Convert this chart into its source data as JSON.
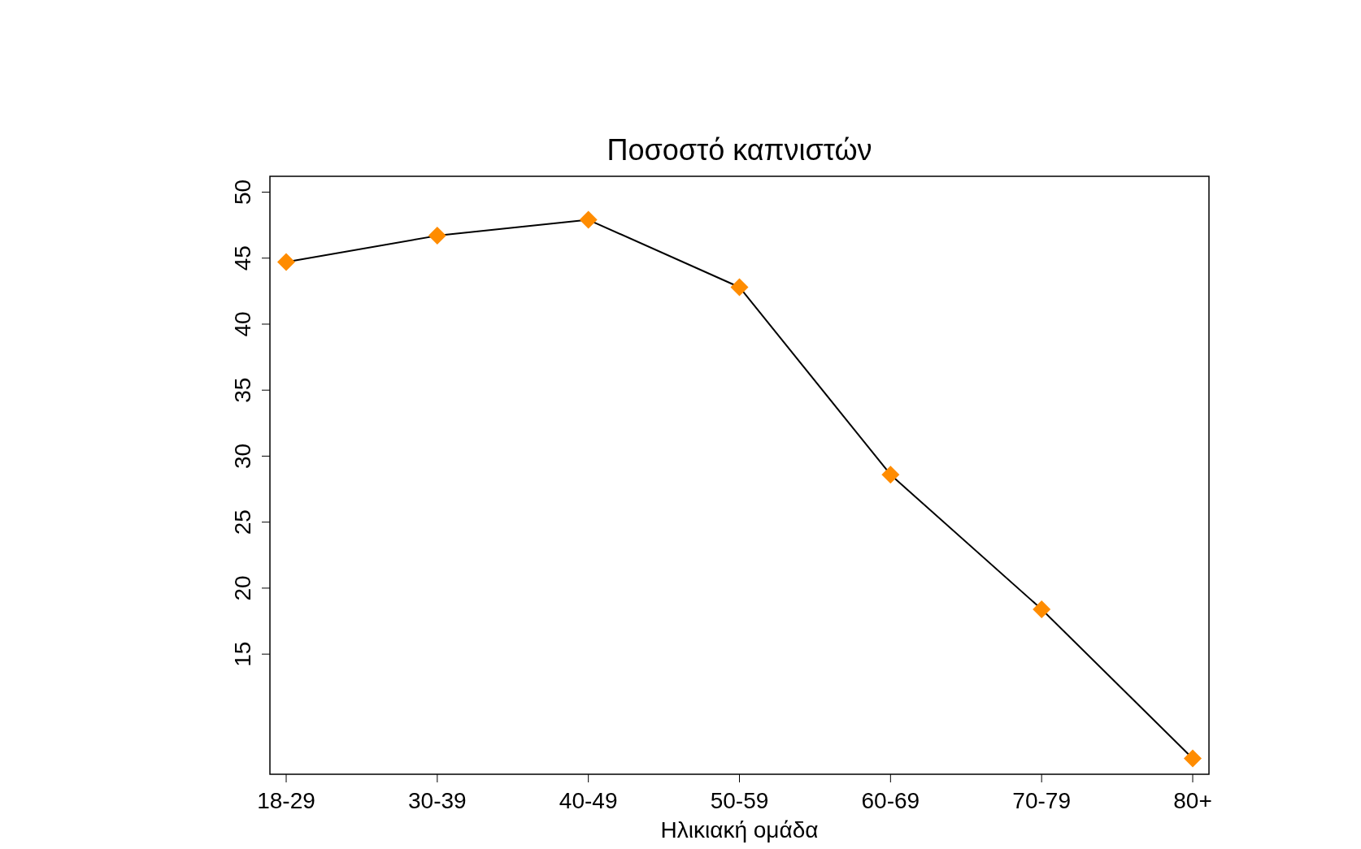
{
  "chart_data": {
    "type": "line",
    "title": "Ποσοστό καπνιστών",
    "xlabel": "Ηλικιακή ομάδα",
    "categories": [
      "18-29",
      "30-39",
      "40-49",
      "50-59",
      "60-69",
      "70-79",
      "80+"
    ],
    "series": [
      {
        "color": "#ff8c00",
        "values": [
          44.7,
          46.7,
          47.9,
          42.8,
          28.6,
          18.4,
          7.1
        ]
      }
    ],
    "ylim": [
      5.9,
      51.2
    ],
    "yticks": [
      15,
      20,
      25,
      30,
      35,
      40,
      45,
      50
    ],
    "marker": "diamond",
    "line_style": "solid"
  }
}
